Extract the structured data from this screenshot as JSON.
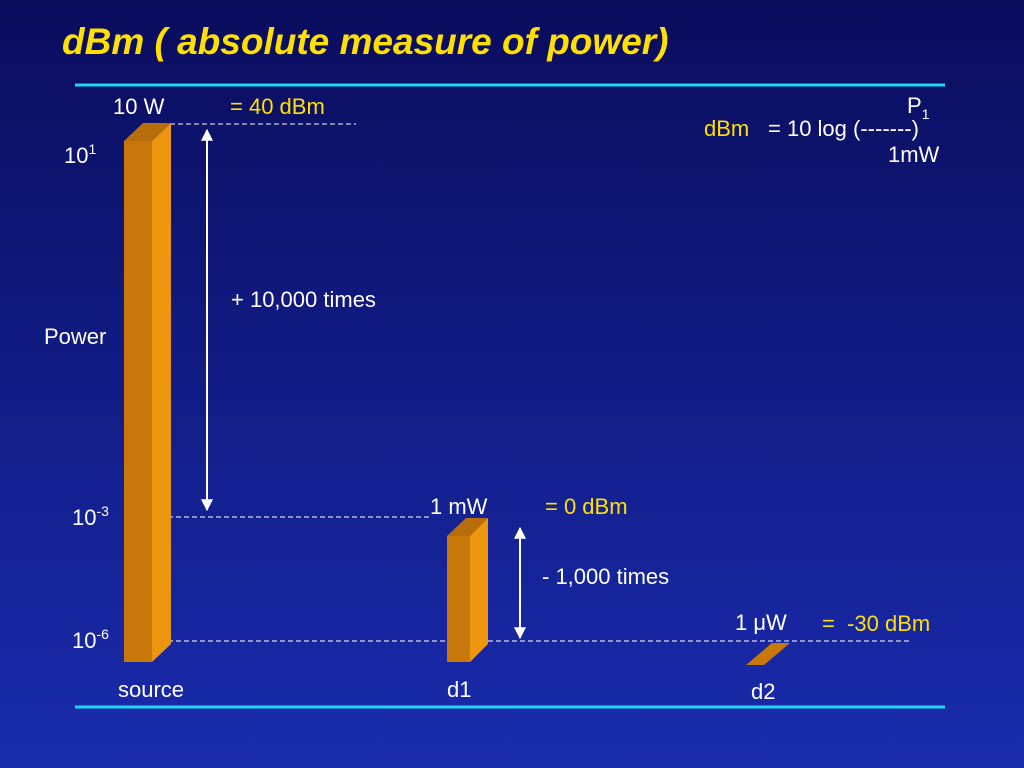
{
  "title": "dBm ( absolute measure of power)",
  "formula": {
    "lhs": "dBm",
    "rhs": "= 10 log (-------)",
    "numerator": {
      "base": "P",
      "sub": "1"
    },
    "denominator": "1mW"
  },
  "axis": {
    "label": "Power",
    "ticks": [
      {
        "base": "10",
        "exp": "1"
      },
      {
        "base": "10",
        "exp": "-3"
      },
      {
        "base": "10",
        "exp": "-6"
      }
    ]
  },
  "bars": [
    {
      "label": "source",
      "power": "10 W",
      "dbm": "= 40 dBm"
    },
    {
      "label": "d1",
      "power": "1 mW",
      "dbm": "= 0 dBm"
    },
    {
      "label": "d2",
      "power": "1 μW",
      "dbm": "=  -30 dBm"
    }
  ],
  "annotations": [
    "+ 10,000 times",
    "- 1,000 times"
  ]
}
